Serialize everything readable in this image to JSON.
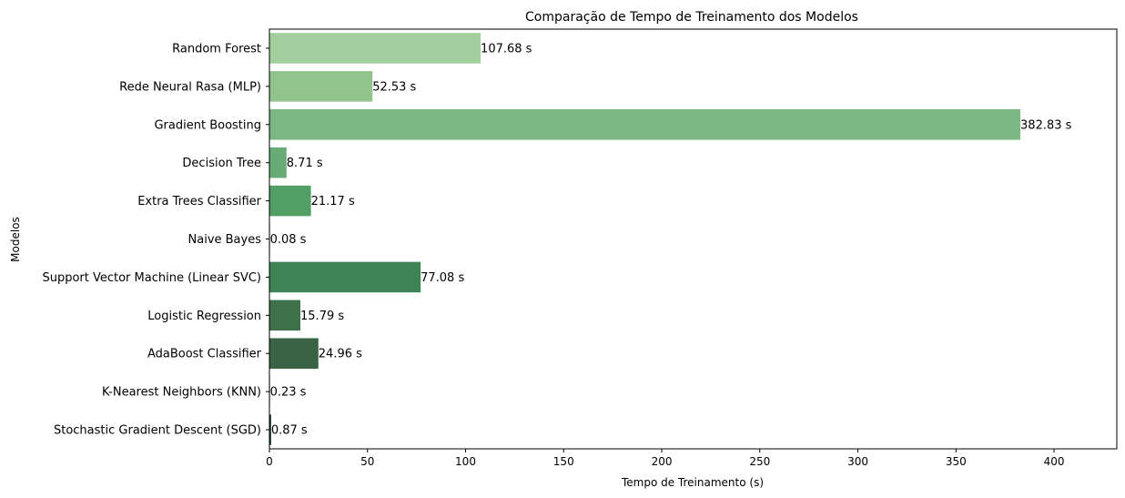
{
  "chart_data": {
    "type": "bar",
    "orientation": "horizontal",
    "title": "Comparação de Tempo de Treinamento dos Modelos",
    "xlabel": "Tempo de Treinamento (s)",
    "ylabel": "Modelos",
    "xlim": [
      0,
      432
    ],
    "xticks": [
      0,
      50,
      100,
      150,
      200,
      250,
      300,
      350,
      400
    ],
    "grid": false,
    "categories": [
      "Random Forest",
      "Rede Neural Rasa (MLP)",
      "Gradient Boosting",
      "Decision Tree",
      "Extra Trees Classifier",
      "Naive Bayes",
      "Support Vector Machine (Linear SVC)",
      "Logistic Regression",
      "AdaBoost Classifier",
      "K-Nearest Neighbors (KNN)",
      "Stochastic Gradient Descent (SGD)"
    ],
    "values": [
      107.68,
      52.53,
      382.83,
      8.71,
      21.17,
      0.08,
      77.08,
      15.79,
      24.96,
      0.23,
      0.87
    ],
    "data_labels": [
      "107.68 s",
      "52.53 s",
      "382.83 s",
      "8.71 s",
      "21.17 s",
      "0.08 s",
      "77.08 s",
      "15.79 s",
      "24.96 s",
      "0.23 s",
      "0.87 s"
    ],
    "colors": [
      "#a3cf9e",
      "#90c48c",
      "#7bb783",
      "#67ab76",
      "#529f65",
      "#46935b",
      "#3e8354",
      "#3e7049",
      "#3a6346",
      "#30503a",
      "#1f3a28"
    ]
  }
}
